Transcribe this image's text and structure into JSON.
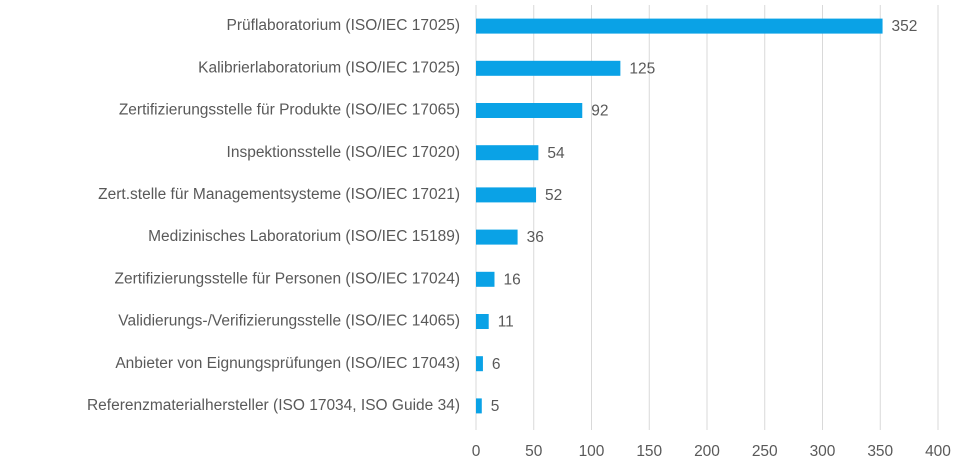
{
  "chart_data": {
    "type": "bar",
    "orientation": "horizontal",
    "categories": [
      "Prüflaboratorium (ISO/IEC 17025)",
      "Kalibrierlaboratorium (ISO/IEC 17025)",
      "Zertifizierungsstelle für Produkte (ISO/IEC 17065)",
      "Inspektionsstelle (ISO/IEC 17020)",
      "Zert.stelle für Managementsysteme (ISO/IEC 17021)",
      "Medizinisches Laboratorium (ISO/IEC 15189)",
      "Zertifizierungsstelle für Personen (ISO/IEC 17024)",
      "Validierungs-/Verifizierungsstelle (ISO/IEC 14065)",
      "Anbieter von Eignungsprüfungen (ISO/IEC 17043)",
      "Referenzmaterialhersteller (ISO 17034, ISO Guide 34)"
    ],
    "values": [
      352,
      125,
      92,
      54,
      52,
      36,
      16,
      11,
      6,
      5
    ],
    "color": "#0aa2e6",
    "xlim": [
      0,
      400
    ],
    "xticks": [
      0,
      50,
      100,
      150,
      200,
      250,
      300,
      350,
      400
    ],
    "grid": true
  }
}
